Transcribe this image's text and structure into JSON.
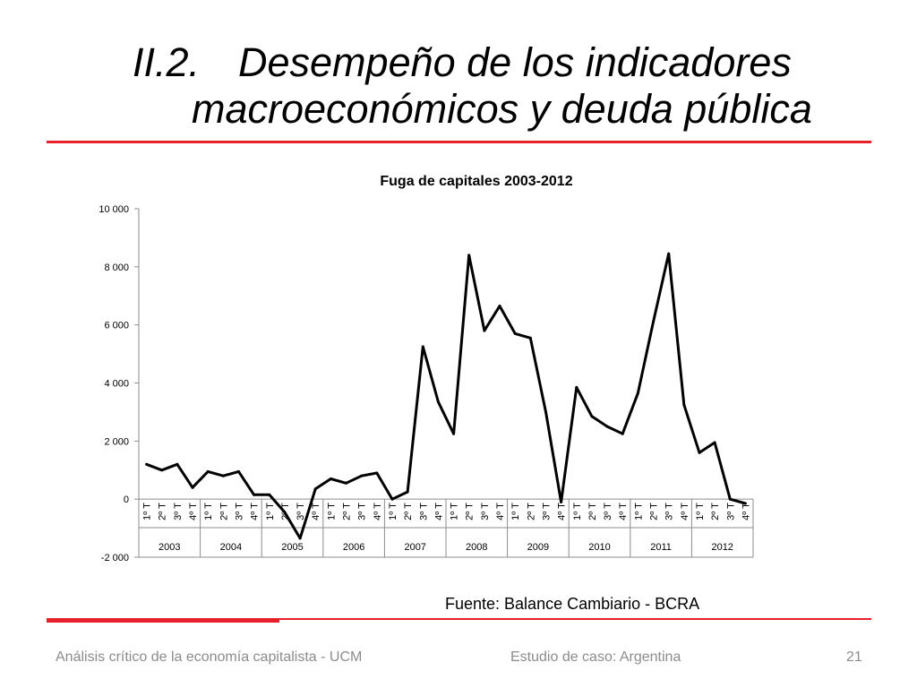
{
  "slide": {
    "title_number": "II.2.",
    "title_line1": "Desempeño de los indicadores",
    "title_line2": "macroeconómicos y deuda pública",
    "source": "Fuente: Balance Cambiario - BCRA",
    "footer_left": "Análisis crítico de la economía capitalista - UCM",
    "footer_center": "Estudio de caso: Argentina",
    "page_number": "21",
    "accent_color": "#e8202a"
  },
  "chart_data": {
    "type": "line",
    "title": "Fuga de capitales 2003-2012",
    "xlabel": "",
    "ylabel": "",
    "ylim": [
      -2000,
      10000
    ],
    "yticks": [
      -2000,
      0,
      2000,
      4000,
      6000,
      8000,
      10000
    ],
    "ytick_labels": [
      "-2 000",
      "0",
      "2 000",
      "4 000",
      "6 000",
      "8 000",
      "10 000"
    ],
    "quarter_labels": [
      "1º T",
      "2º T",
      "3º T",
      "4º T"
    ],
    "years": [
      "2003",
      "2004",
      "2005",
      "2006",
      "2007",
      "2008",
      "2009",
      "2010",
      "2011",
      "2012"
    ],
    "series": [
      {
        "name": "Fuga de capitales",
        "color": "#000000",
        "values": [
          1200,
          1000,
          1200,
          400,
          950,
          800,
          950,
          150,
          150,
          -450,
          -1350,
          350,
          700,
          550,
          800,
          900,
          0,
          250,
          5250,
          3350,
          2250,
          8400,
          5800,
          6650,
          5700,
          5550,
          3000,
          -100,
          3850,
          2850,
          2500,
          2250,
          3650,
          6100,
          8450,
          3250,
          1600,
          1950,
          0,
          -150
        ]
      }
    ]
  }
}
